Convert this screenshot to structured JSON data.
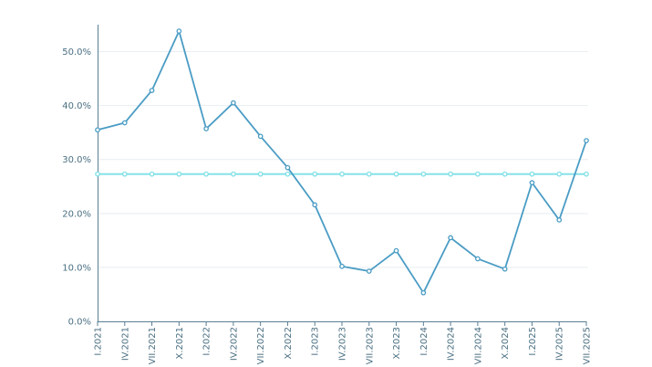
{
  "chart_data": {
    "type": "line",
    "title": "",
    "xlabel": "",
    "ylabel": "",
    "categories": [
      "I.2021",
      "IV.2021",
      "VII.2021",
      "X.2021",
      "I.2022",
      "IV.2022",
      "VII.2022",
      "X.2022",
      "I.2023",
      "IV.2023",
      "VII.2023",
      "X.2023",
      "I.2024",
      "IV.2024",
      "VII.2024",
      "X.2024",
      "I.2025",
      "IV.2025",
      "VII.2025"
    ],
    "y_ticks": [
      "0.0%",
      "10.0%",
      "20.0%",
      "30.0%",
      "40.0%",
      "50.0%"
    ],
    "ylim": [
      0,
      55
    ],
    "grid": true,
    "legend": "none",
    "series": [
      {
        "color": "#4a9cc4",
        "values": [
          35.5,
          36.8,
          42.8,
          53.8,
          35.7,
          40.5,
          34.3,
          28.5,
          21.6,
          10.2,
          9.3,
          13.1,
          5.3,
          15.5,
          11.6,
          9.7,
          25.7,
          18.8,
          33.5
        ]
      },
      {
        "color": "#7fe0e6",
        "values": [
          27.3,
          27.3,
          27.3,
          27.3,
          27.3,
          27.3,
          27.3,
          27.3,
          27.3,
          27.3,
          27.3,
          27.3,
          27.3,
          27.3,
          27.3,
          27.3,
          27.3,
          27.3,
          27.3
        ]
      }
    ]
  }
}
